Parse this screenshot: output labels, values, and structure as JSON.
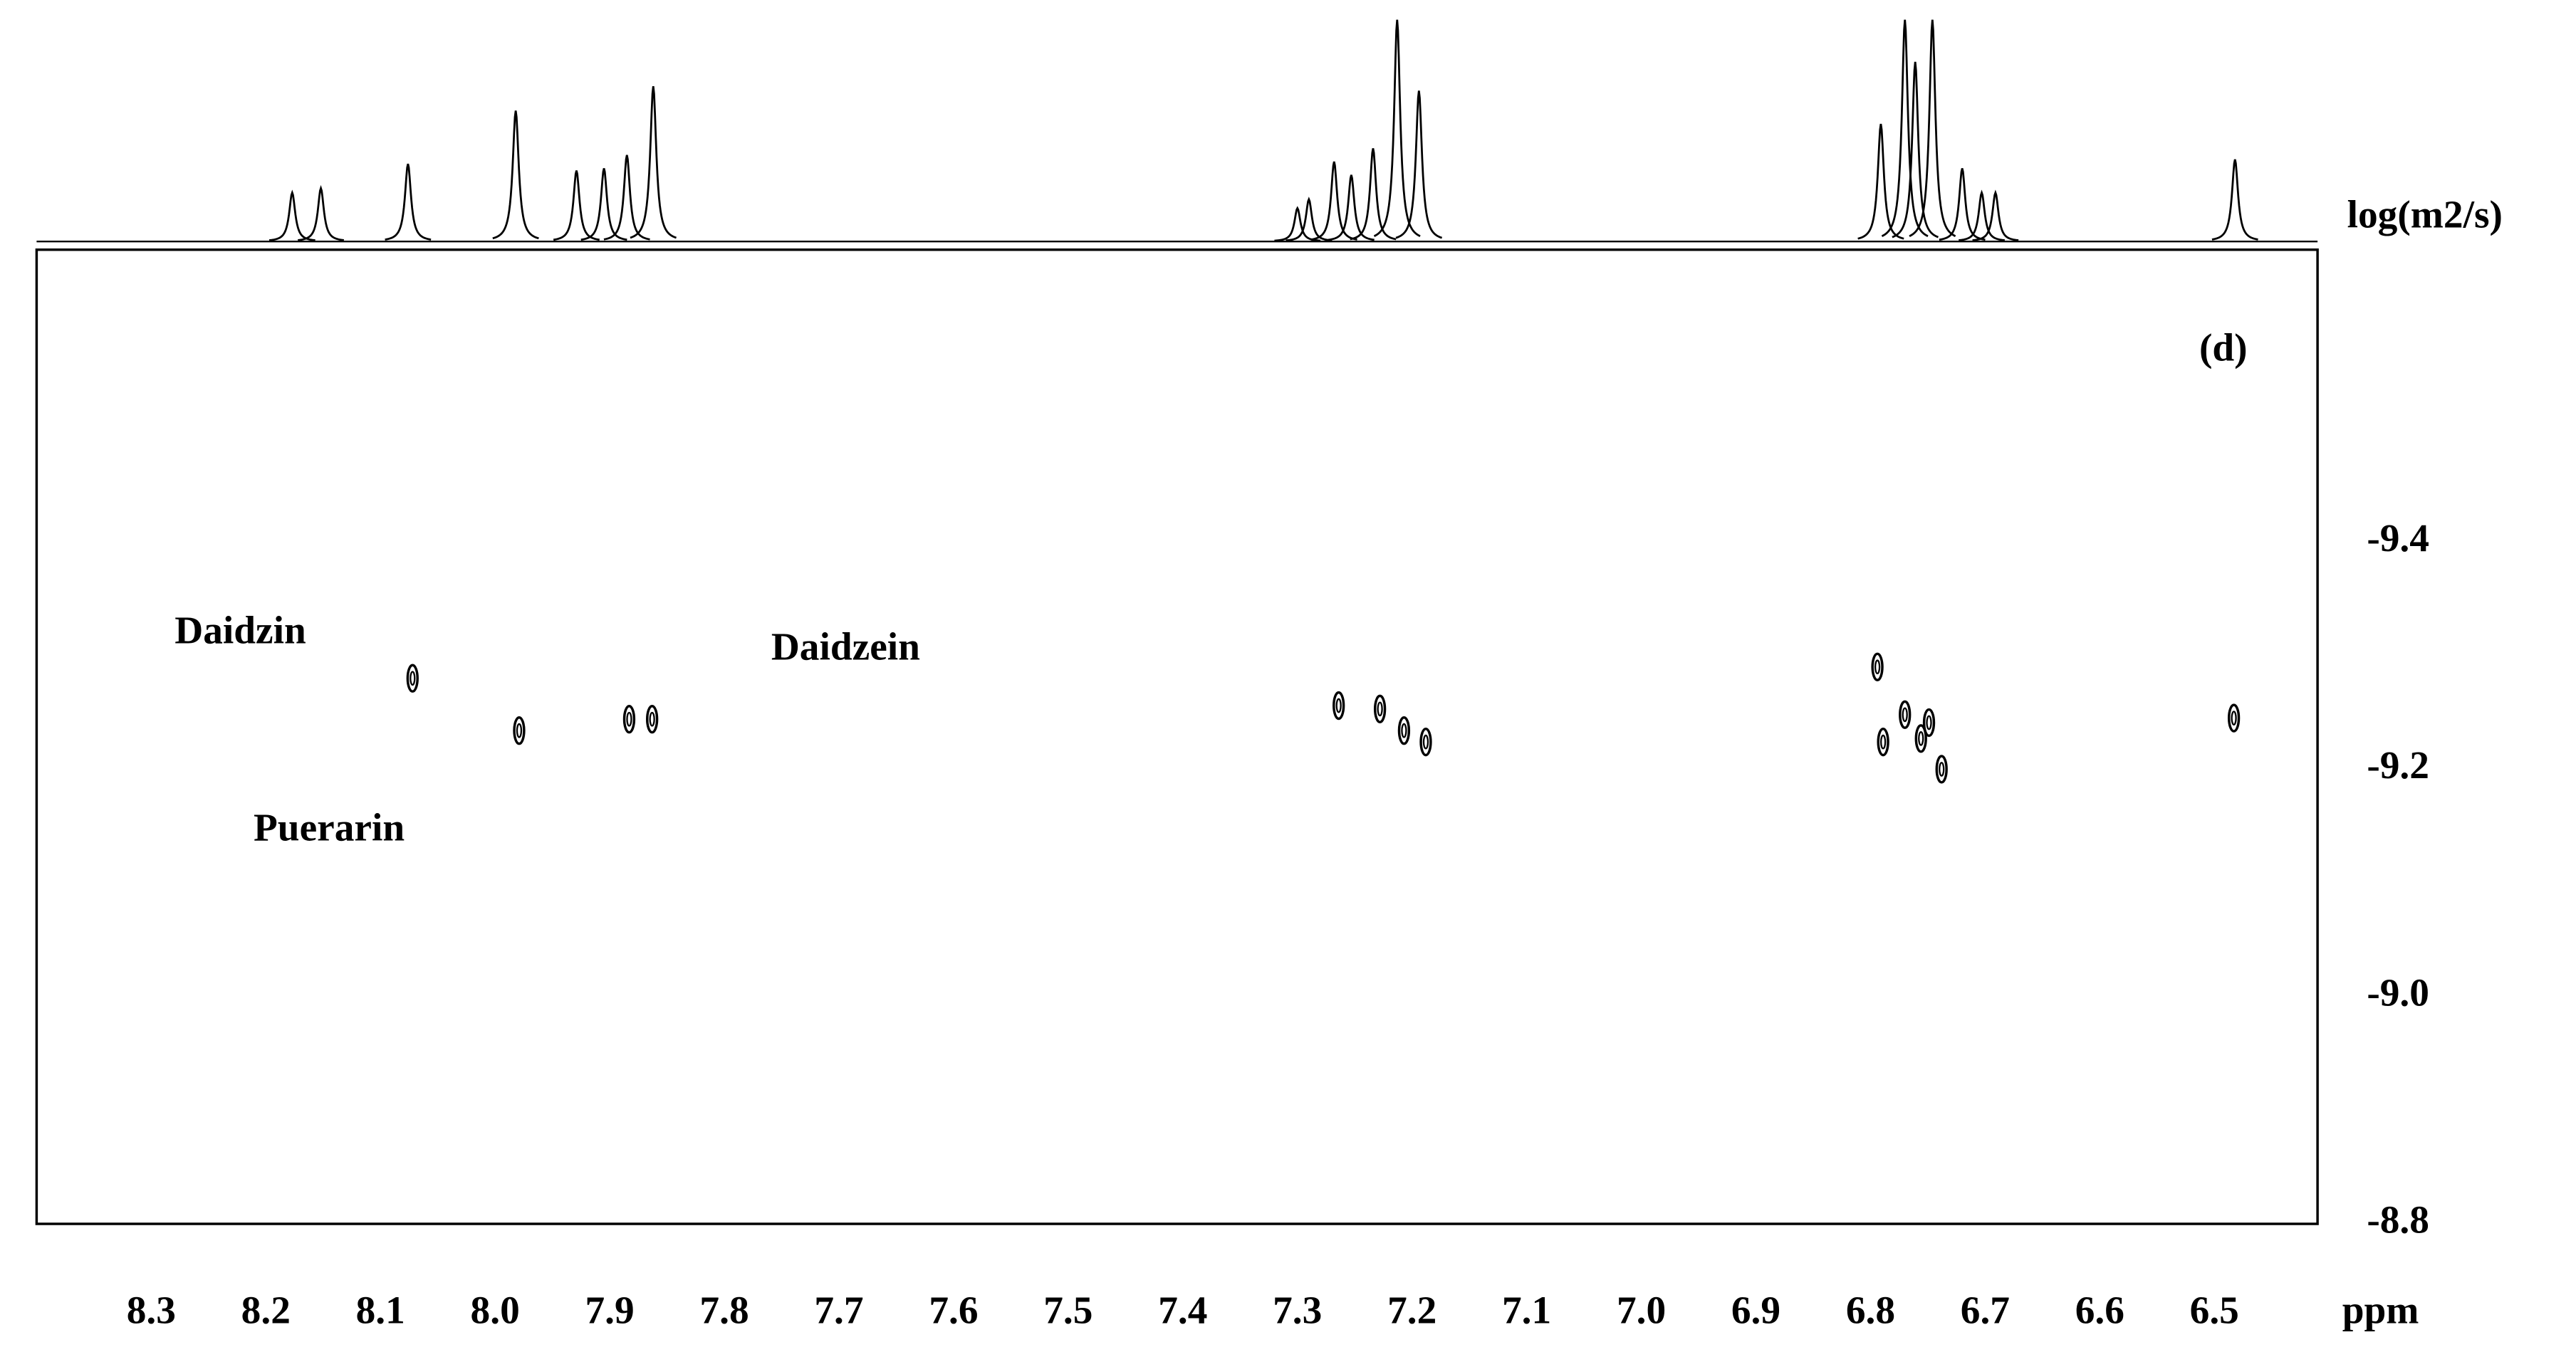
{
  "chart_data": {
    "type": "dosy",
    "y_label": "log(m2/s)",
    "x_label": "ppm",
    "panel_label": "(d)",
    "annotations": [
      "Daidzin",
      "Daidzein",
      "Puerarin"
    ],
    "color": "#000000",
    "xlim": [
      8.4,
      6.41
    ],
    "xticks": [
      8.3,
      8.2,
      8.1,
      {
        "value": 8,
        "label": "8.0"
      },
      7.9,
      7.8,
      7.7,
      7.6,
      7.5,
      7.4,
      7.3,
      7.2,
      7.1,
      {
        "value": 7,
        "label": "7.0"
      },
      6.9,
      6.8,
      6.7,
      6.6,
      6.5
    ],
    "ylim": [
      -9.66,
      -8.8
    ],
    "yticks": [
      -9.4,
      -9.2,
      {
        "value": -9,
        "label": "-9.0"
      },
      -8.8
    ],
    "peaks": {
      "x": [
        8.072,
        7.979,
        7.883,
        7.863,
        7.264,
        7.228,
        7.207,
        7.188,
        6.794,
        6.789,
        6.77,
        6.756,
        6.749,
        6.738,
        6.483
      ],
      "y": [
        -9.28,
        -9.234,
        -9.244,
        -9.244,
        -9.256,
        -9.253,
        -9.234,
        -9.224,
        -9.29,
        -9.224,
        -9.248,
        -9.227,
        -9.241,
        -9.2,
        -9.245
      ]
    },
    "projection": {
      "ylim": [
        0,
        100
      ],
      "x": [
        8.177,
        8.152,
        8.076,
        7.982,
        7.929,
        7.905,
        7.885,
        7.862,
        7.3,
        7.29,
        7.268,
        7.253,
        7.234,
        7.213,
        7.194,
        6.791,
        6.77,
        6.761,
        6.746,
        6.72,
        6.703,
        6.691,
        6.482
      ],
      "heights": [
        22,
        24,
        35,
        59,
        32,
        33,
        39,
        70,
        15,
        19,
        36,
        30,
        42,
        100,
        68,
        53,
        100,
        81,
        100,
        33,
        22,
        22,
        37
      ]
    }
  }
}
